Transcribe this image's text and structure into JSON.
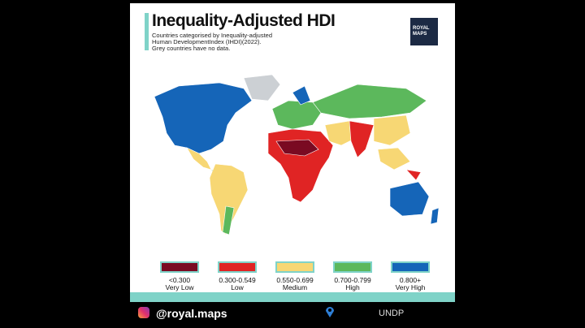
{
  "header": {
    "title": "Inequality-Adjusted HDI",
    "subtitle": "Countries categorised by Inequality-adjusted Human DevelopmentIndex (IHDI)(2022). Grey countries have no data.",
    "logo": "ROYAL MAPS"
  },
  "legend": [
    {
      "color": "#7a0a22",
      "range": "<0.300",
      "label": "Very Low"
    },
    {
      "color": "#e02424",
      "range": "0.300-0.549",
      "label": "Low"
    },
    {
      "color": "#f7d774",
      "range": "0.550-0.699",
      "label": "Medium"
    },
    {
      "color": "#5cb85c",
      "range": "0.700-0.799",
      "label": "High"
    },
    {
      "color": "#1565b8",
      "range": "0.800+",
      "label": "Very High"
    }
  ],
  "footer": {
    "handle": "@royal.maps",
    "source": "UNDP"
  }
}
